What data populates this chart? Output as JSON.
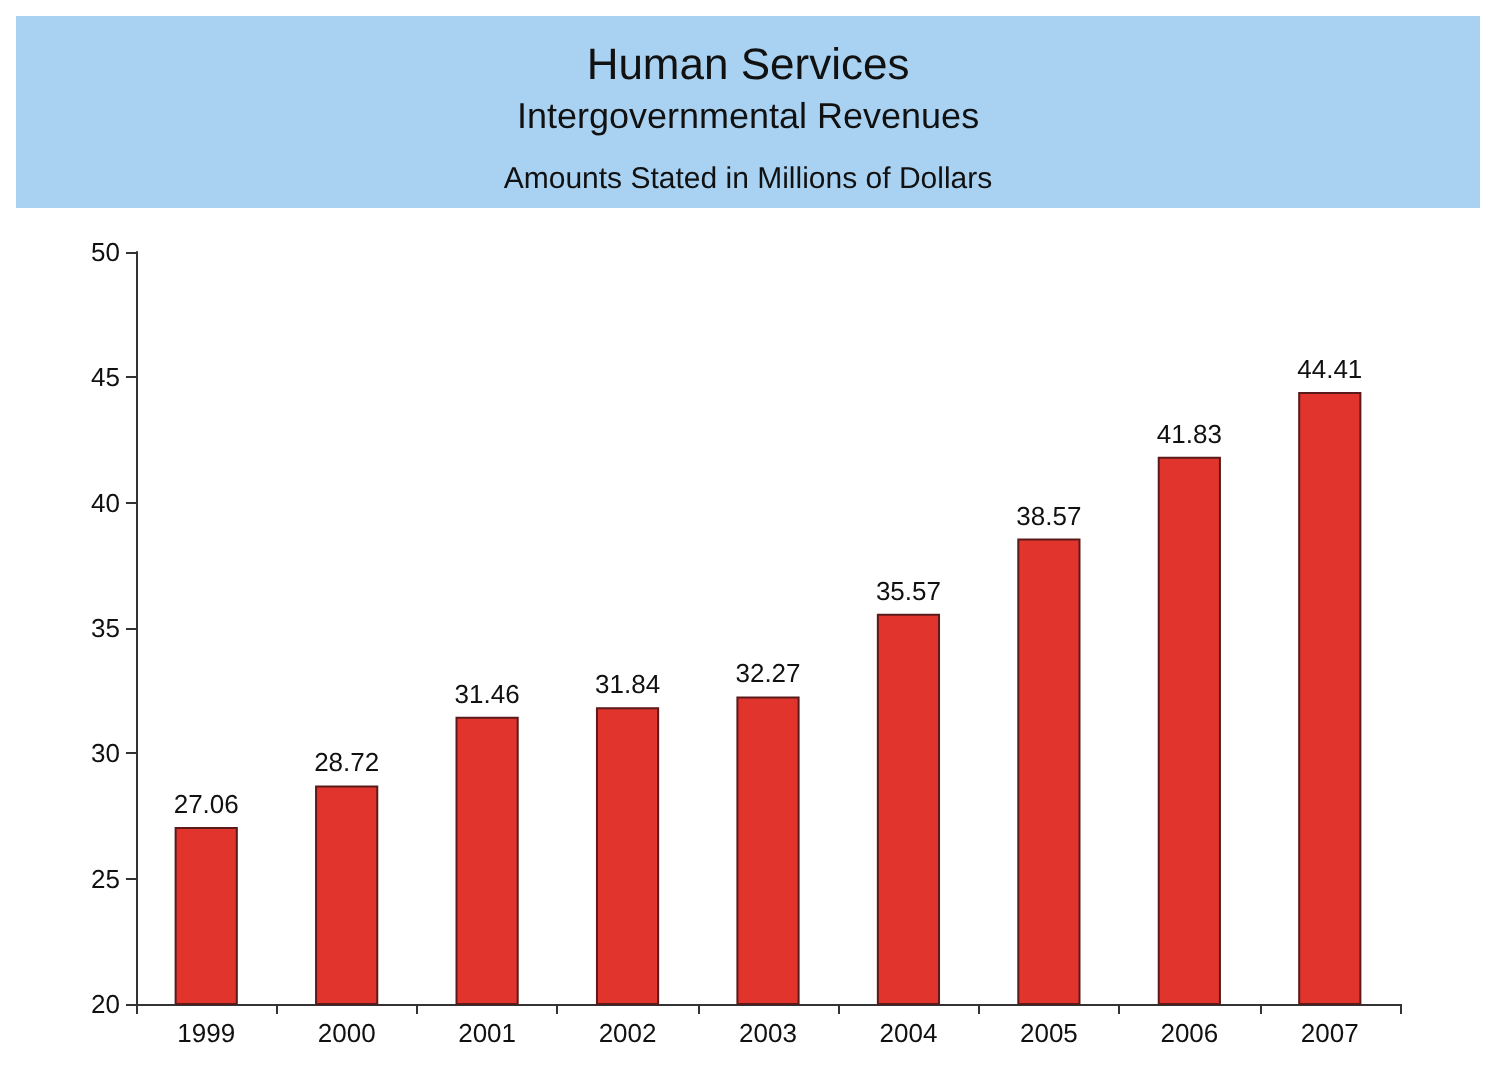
{
  "chart_data": {
    "type": "bar",
    "title": "Human Services",
    "subtitle": "Intergovernmental Revenues",
    "annotations": [
      "Amounts Stated in Millions of Dollars"
    ],
    "categories": [
      "1999",
      "2000",
      "2001",
      "2002",
      "2003",
      "2004",
      "2005",
      "2006",
      "2007"
    ],
    "values": [
      27.06,
      28.72,
      31.46,
      31.84,
      32.27,
      35.57,
      38.57,
      41.83,
      44.41
    ],
    "color": "#e0342c",
    "ylim": [
      20,
      50
    ],
    "yticks": [
      20,
      25,
      30,
      35,
      40,
      45,
      50
    ],
    "grid": false,
    "data_labels": true
  }
}
